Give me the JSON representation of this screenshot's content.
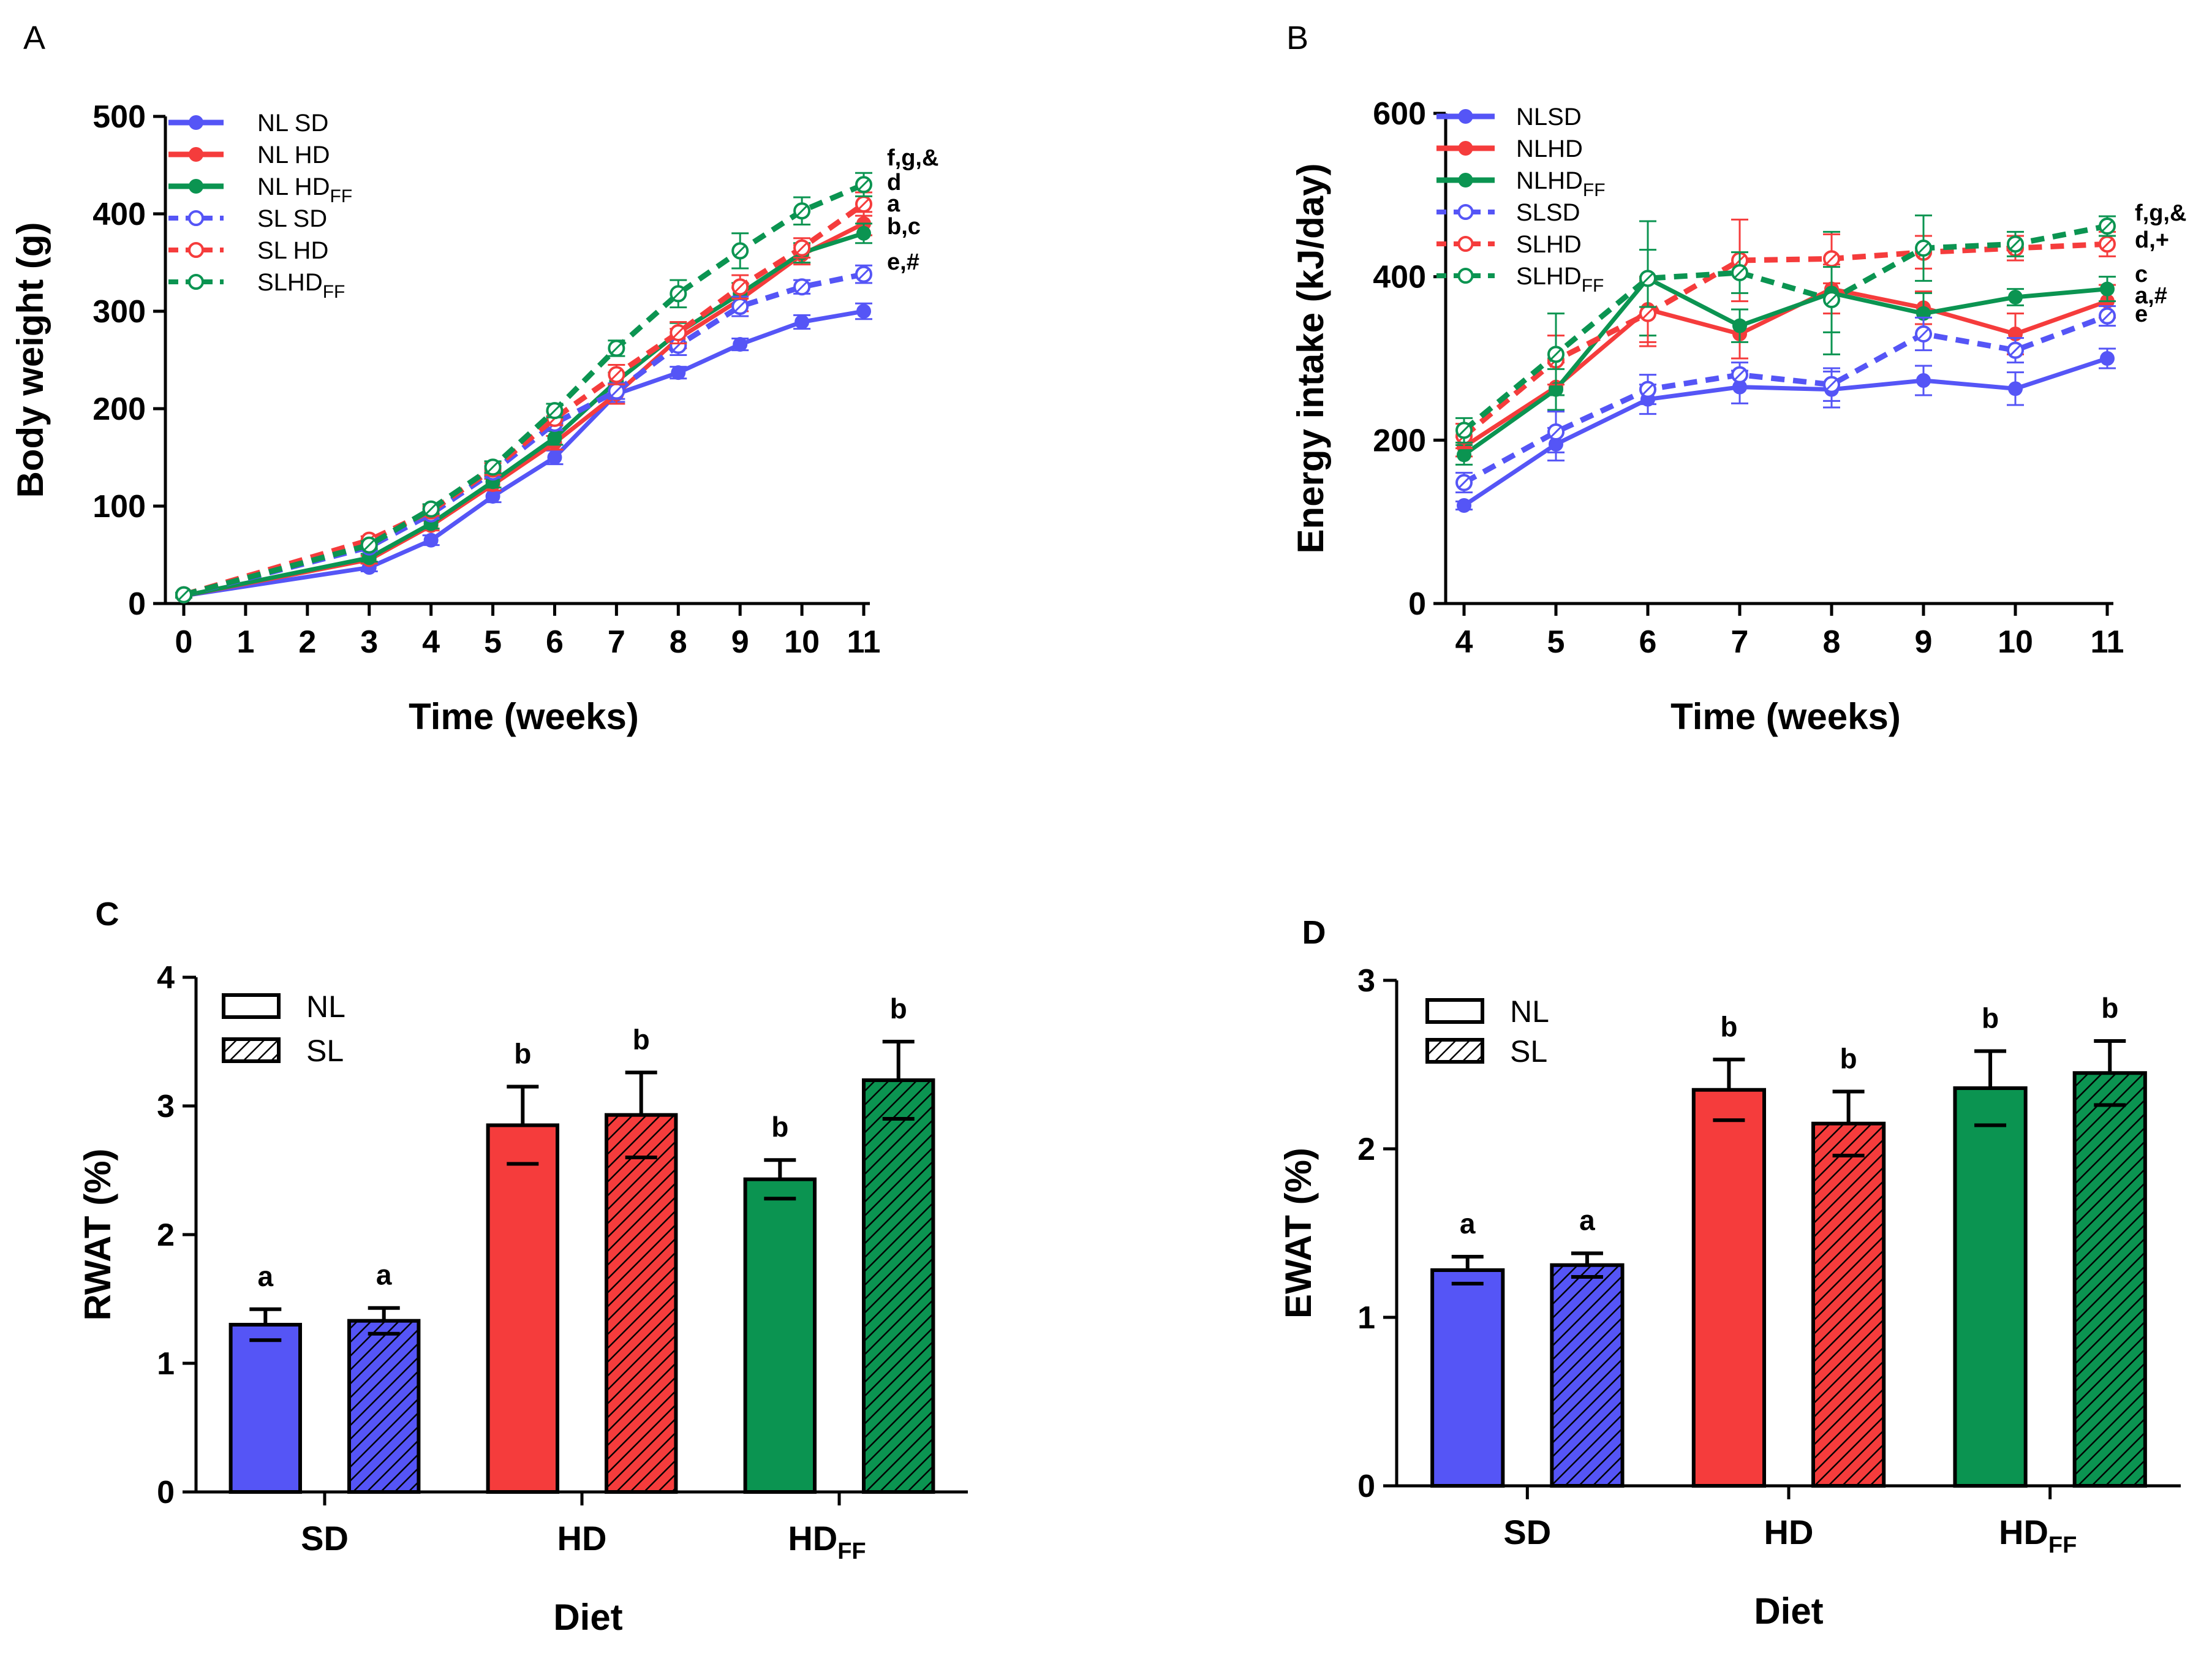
{
  "colors": {
    "blue": "#5555f6",
    "red": "#f53c3c",
    "green": "#0b9451",
    "axis": "#000000"
  },
  "chart_data": [
    {
      "panel": "A",
      "type": "line",
      "xlabel": "Time (weeks)",
      "ylabel": "Body weight (g)",
      "xlim": [
        0,
        11
      ],
      "ylim": [
        0,
        500
      ],
      "x_ticks": [
        0,
        1,
        2,
        3,
        4,
        5,
        6,
        7,
        8,
        9,
        10,
        11
      ],
      "y_ticks": [
        0,
        100,
        200,
        300,
        400,
        500
      ],
      "x": [
        0,
        3,
        4,
        5,
        6,
        7,
        8,
        9,
        10,
        11
      ],
      "series": [
        {
          "name": "NL SD",
          "legend_main": "NL SD",
          "legend_sub": "",
          "color": "blue",
          "style": "solid",
          "values": [
            8,
            37,
            65,
            110,
            150,
            215,
            237,
            266,
            289,
            300
          ],
          "errors": [
            2,
            4,
            5,
            6,
            7,
            8,
            6,
            6,
            7,
            8
          ]
        },
        {
          "name": "NL HD",
          "legend_main": "NL HD",
          "legend_sub": "",
          "color": "red",
          "style": "solid",
          "values": [
            8,
            45,
            80,
            122,
            165,
            215,
            272,
            312,
            358,
            390
          ],
          "errors": [
            2,
            4,
            5,
            6,
            7,
            10,
            10,
            12,
            10,
            12
          ]
        },
        {
          "name": "NL HDFF",
          "legend_main": "NL HD",
          "legend_sub": "FF",
          "color": "green",
          "style": "solid",
          "values": [
            8,
            47,
            82,
            125,
            170,
            228,
            278,
            318,
            360,
            380
          ],
          "errors": [
            2,
            4,
            5,
            6,
            7,
            9,
            10,
            11,
            10,
            10
          ]
        },
        {
          "name": "SL SD",
          "legend_main": "SL SD",
          "legend_sub": "",
          "color": "blue",
          "style": "dashed",
          "values": [
            9,
            58,
            92,
            135,
            185,
            218,
            265,
            305,
            325,
            338
          ],
          "errors": [
            2,
            4,
            5,
            6,
            7,
            8,
            10,
            10,
            7,
            9
          ]
        },
        {
          "name": "SL HD",
          "legend_main": "SL HD",
          "legend_sub": "",
          "color": "red",
          "style": "dashed",
          "values": [
            9,
            65,
            95,
            138,
            190,
            235,
            278,
            325,
            365,
            410
          ],
          "errors": [
            2,
            4,
            5,
            6,
            7,
            10,
            11,
            12,
            10,
            12
          ]
        },
        {
          "name": "SLHDFF",
          "legend_main": "SLHD",
          "legend_sub": "FF",
          "color": "green",
          "style": "dashed",
          "values": [
            9,
            60,
            97,
            140,
            198,
            262,
            318,
            362,
            403,
            430
          ],
          "errors": [
            2,
            4,
            5,
            6,
            7,
            8,
            14,
            18,
            14,
            12
          ]
        }
      ],
      "annotations": [
        "f,g,&",
        "d",
        "a",
        "b,c",
        "e,#"
      ]
    },
    {
      "panel": "B",
      "type": "line",
      "xlabel": "Time (weeks)",
      "ylabel": "Energy intake (kJ/day)",
      "xlim": [
        4,
        11
      ],
      "ylim": [
        0,
        600
      ],
      "x_ticks": [
        4,
        5,
        6,
        7,
        8,
        9,
        10,
        11
      ],
      "y_ticks": [
        0,
        200,
        400,
        600
      ],
      "x": [
        4,
        5,
        6,
        7,
        8,
        9,
        10,
        11
      ],
      "series": [
        {
          "name": "NLSD",
          "legend_main": "NLSD",
          "legend_sub": "",
          "color": "blue",
          "style": "solid",
          "values": [
            120,
            195,
            250,
            265,
            262,
            273,
            263,
            300
          ],
          "errors": [
            5,
            20,
            18,
            20,
            22,
            18,
            20,
            12
          ]
        },
        {
          "name": "NLHD",
          "legend_main": "NLHD",
          "legend_sub": "",
          "color": "red",
          "style": "solid",
          "values": [
            192,
            265,
            360,
            330,
            385,
            362,
            330,
            370
          ],
          "errors": [
            12,
            30,
            40,
            30,
            30,
            20,
            25,
            20
          ]
        },
        {
          "name": "NLHDFF",
          "legend_main": "NLHD",
          "legend_sub": "FF",
          "color": "green",
          "style": "solid",
          "values": [
            182,
            262,
            398,
            340,
            380,
            355,
            375,
            385
          ],
          "errors": [
            12,
            25,
            70,
            20,
            75,
            25,
            10,
            15
          ]
        },
        {
          "name": "SLSD",
          "legend_main": "SLSD",
          "legend_sub": "",
          "color": "blue",
          "style": "dashed",
          "values": [
            148,
            210,
            262,
            280,
            268,
            330,
            310,
            352
          ],
          "errors": [
            12,
            25,
            18,
            15,
            20,
            20,
            15,
            12
          ]
        },
        {
          "name": "SLHD",
          "legend_main": "SLHD",
          "legend_sub": "",
          "color": "red",
          "style": "dashed",
          "values": [
            205,
            298,
            355,
            420,
            422,
            430,
            435,
            440
          ],
          "errors": [
            15,
            30,
            40,
            50,
            30,
            20,
            15,
            15
          ]
        },
        {
          "name": "SLHDFF",
          "legend_main": "SLHD",
          "legend_sub": "FF",
          "color": "green",
          "style": "dashed",
          "values": [
            212,
            305,
            398,
            405,
            372,
            435,
            440,
            462
          ],
          "errors": [
            15,
            50,
            35,
            25,
            40,
            40,
            15,
            12
          ]
        }
      ],
      "annotations": [
        "f,g,&",
        "d,+",
        "c",
        "a,#",
        "e"
      ]
    },
    {
      "panel": "C",
      "type": "bar",
      "xlabel": "Diet",
      "ylabel": "RWAT (%)",
      "ylim": [
        0,
        4
      ],
      "y_ticks": [
        0,
        1,
        2,
        3,
        4
      ],
      "categories": [
        {
          "main": "SD",
          "sub": ""
        },
        {
          "main": "HD",
          "sub": ""
        },
        {
          "main": "HD",
          "sub": "FF"
        }
      ],
      "legend": [
        {
          "label": "NL",
          "pattern": "open"
        },
        {
          "label": "SL",
          "pattern": "hatched"
        }
      ],
      "series": [
        {
          "name": "NL",
          "values": [
            1.3,
            2.85,
            2.43
          ],
          "errors": [
            0.12,
            0.3,
            0.15
          ],
          "letters": [
            "a",
            "b",
            "b"
          ]
        },
        {
          "name": "SL",
          "values": [
            1.33,
            2.93,
            3.2
          ],
          "errors": [
            0.1,
            0.33,
            0.3
          ],
          "letters": [
            "a",
            "b",
            "b"
          ]
        }
      ]
    },
    {
      "panel": "D",
      "type": "bar",
      "xlabel": "Diet",
      "ylabel": "EWAT (%)",
      "ylim": [
        0,
        3
      ],
      "y_ticks": [
        0,
        1,
        2,
        3
      ],
      "categories": [
        {
          "main": "SD",
          "sub": ""
        },
        {
          "main": "HD",
          "sub": ""
        },
        {
          "main": "HD",
          "sub": "FF"
        }
      ],
      "legend": [
        {
          "label": "NL",
          "pattern": "open"
        },
        {
          "label": "SL",
          "pattern": "hatched"
        }
      ],
      "series": [
        {
          "name": "NL",
          "values": [
            1.28,
            2.35,
            2.36
          ],
          "errors": [
            0.08,
            0.18,
            0.22
          ],
          "letters": [
            "a",
            "b",
            "b"
          ]
        },
        {
          "name": "SL",
          "values": [
            1.31,
            2.15,
            2.45
          ],
          "errors": [
            0.07,
            0.19,
            0.19
          ],
          "letters": [
            "a",
            "b",
            "b"
          ]
        }
      ]
    }
  ]
}
